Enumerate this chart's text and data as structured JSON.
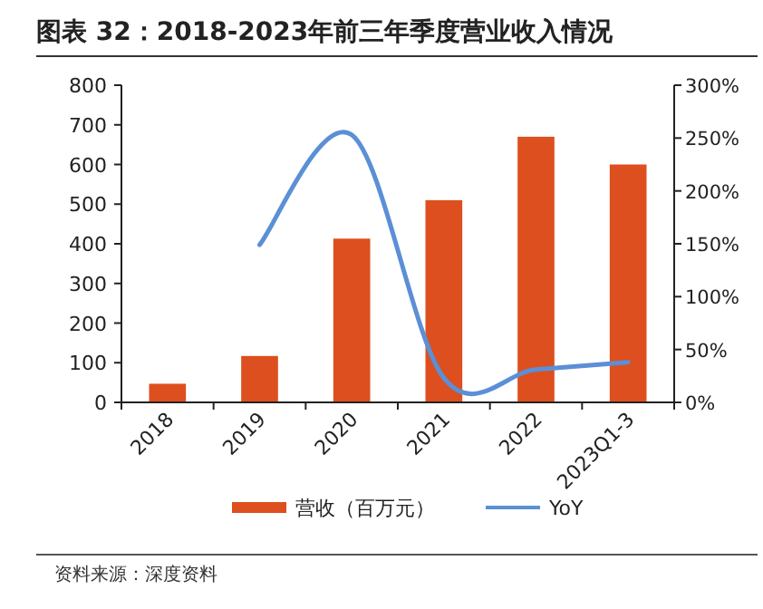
{
  "chart_data": {
    "type": "bar",
    "title": "图表 32：2018-2023年前三年季度营业收入情况",
    "categories": [
      "2018",
      "2019",
      "2020",
      "2021",
      "2022",
      "2023Q1-3"
    ],
    "series": [
      {
        "name": "营收（百万元）",
        "color": "#dd4f1f",
        "values": [
          47,
          117,
          413,
          510,
          670,
          600
        ]
      },
      {
        "name": "YoY",
        "type": "line",
        "axis": "y2",
        "color": "#5b8fd6",
        "values": [
          null,
          149,
          253,
          23,
          31,
          38
        ]
      }
    ],
    "ylim": [
      0,
      800
    ],
    "yticks": [
      0,
      100,
      200,
      300,
      400,
      500,
      600,
      700,
      800
    ],
    "y2lim": [
      0,
      300
    ],
    "y2ticks": [
      {
        "value": 0,
        "label": "0%"
      },
      {
        "value": 50,
        "label": "50%"
      },
      {
        "value": 100,
        "label": "100%"
      },
      {
        "value": 150,
        "label": "150%"
      },
      {
        "value": 200,
        "label": "200%"
      },
      {
        "value": 250,
        "label": "250%"
      },
      {
        "value": 300,
        "label": "300%"
      }
    ],
    "legend": "bottom",
    "grid": false,
    "marker": "none",
    "annotations": [
      "资料来源：深度资料"
    ]
  }
}
